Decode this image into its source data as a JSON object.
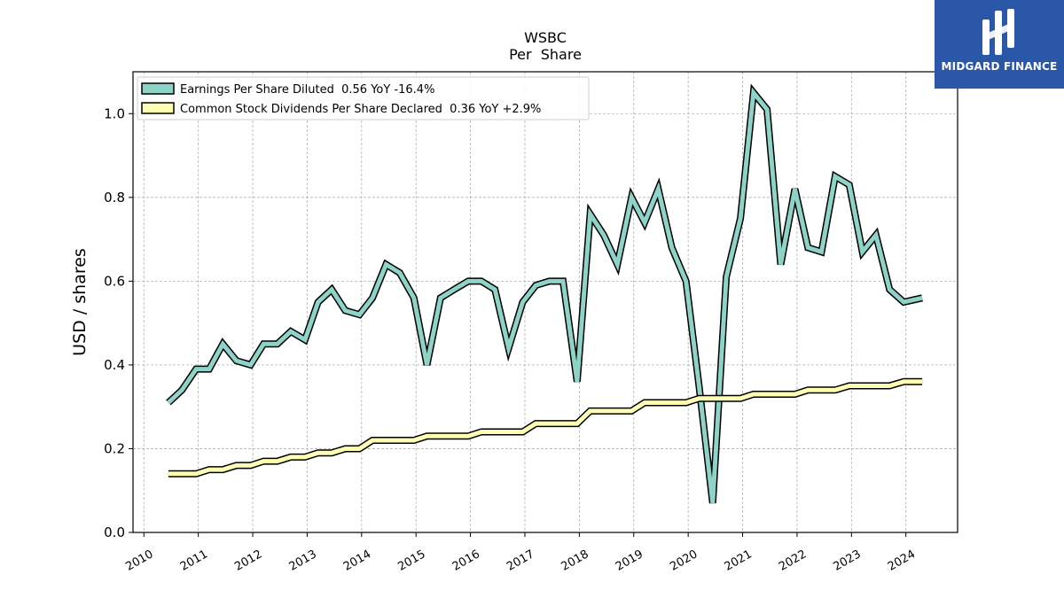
{
  "brand": {
    "name": "MIDGARD FINANCE"
  },
  "chart_data": {
    "type": "line",
    "title": "WSBC",
    "subtitle": "Per  Share",
    "ylabel": "USD / shares",
    "xlabel": "",
    "ylim": [
      0,
      1.1
    ],
    "xlim": [
      2009.8,
      2024.95
    ],
    "yticks": [
      0.0,
      0.2,
      0.4,
      0.6,
      0.8,
      1.0
    ],
    "ytick_labels": [
      "0.0",
      "0.2",
      "0.4",
      "0.6",
      "0.8",
      "1.0"
    ],
    "xticks": [
      2010,
      2011,
      2012,
      2013,
      2014,
      2015,
      2016,
      2017,
      2018,
      2019,
      2020,
      2021,
      2022,
      2023,
      2024
    ],
    "xtick_labels": [
      "2010",
      "2011",
      "2012",
      "2013",
      "2014",
      "2015",
      "2016",
      "2017",
      "2018",
      "2019",
      "2020",
      "2021",
      "2022",
      "2023",
      "2024"
    ],
    "grid": true,
    "legend_position": "top-left",
    "series": [
      {
        "name": "Earnings Per Share Diluted  0.56 YoY -16.4%",
        "color": "#8dd3c7",
        "x": [
          2010.45,
          2010.7,
          2010.96,
          2011.2,
          2011.45,
          2011.7,
          2011.96,
          2012.2,
          2012.45,
          2012.7,
          2012.96,
          2013.2,
          2013.45,
          2013.7,
          2013.96,
          2014.2,
          2014.45,
          2014.7,
          2014.96,
          2015.2,
          2015.45,
          2015.7,
          2015.96,
          2016.2,
          2016.45,
          2016.7,
          2016.96,
          2017.2,
          2017.45,
          2017.7,
          2017.96,
          2018.2,
          2018.45,
          2018.7,
          2018.96,
          2019.2,
          2019.45,
          2019.7,
          2019.96,
          2020.2,
          2020.45,
          2020.7,
          2020.96,
          2021.2,
          2021.45,
          2021.7,
          2021.96,
          2022.2,
          2022.45,
          2022.7,
          2022.96,
          2023.2,
          2023.45,
          2023.7,
          2023.96,
          2024.3
        ],
        "y": [
          0.31,
          0.34,
          0.39,
          0.39,
          0.45,
          0.41,
          0.4,
          0.45,
          0.45,
          0.48,
          0.46,
          0.55,
          0.58,
          0.53,
          0.52,
          0.56,
          0.64,
          0.62,
          0.56,
          0.4,
          0.56,
          0.58,
          0.6,
          0.6,
          0.58,
          0.44,
          0.55,
          0.59,
          0.6,
          0.6,
          0.36,
          0.76,
          0.71,
          0.64,
          0.8,
          0.74,
          0.82,
          0.68,
          0.6,
          0.35,
          0.07,
          0.61,
          0.75,
          1.05,
          1.01,
          0.64,
          0.82,
          0.68,
          0.67,
          0.85,
          0.83,
          0.67,
          0.71,
          0.58,
          0.55,
          0.56
        ]
      },
      {
        "name": "Common Stock Dividends Per Share Declared  0.36 YoY +2.9%",
        "color": "#ffffb3",
        "x": [
          2010.45,
          2010.7,
          2010.96,
          2011.2,
          2011.45,
          2011.7,
          2011.96,
          2012.2,
          2012.45,
          2012.7,
          2012.96,
          2013.2,
          2013.45,
          2013.7,
          2013.96,
          2014.2,
          2014.45,
          2014.7,
          2014.96,
          2015.2,
          2015.45,
          2015.7,
          2015.96,
          2016.2,
          2016.45,
          2016.7,
          2016.96,
          2017.2,
          2017.45,
          2017.7,
          2017.96,
          2018.2,
          2018.45,
          2018.7,
          2018.96,
          2019.2,
          2019.45,
          2019.7,
          2019.96,
          2020.2,
          2020.45,
          2020.7,
          2020.96,
          2021.2,
          2021.45,
          2021.7,
          2021.96,
          2022.2,
          2022.45,
          2022.7,
          2022.96,
          2023.2,
          2023.45,
          2023.7,
          2023.96,
          2024.3
        ],
        "y": [
          0.14,
          0.14,
          0.14,
          0.15,
          0.15,
          0.16,
          0.16,
          0.17,
          0.17,
          0.18,
          0.18,
          0.19,
          0.19,
          0.2,
          0.2,
          0.22,
          0.22,
          0.22,
          0.22,
          0.23,
          0.23,
          0.23,
          0.23,
          0.24,
          0.24,
          0.24,
          0.24,
          0.26,
          0.26,
          0.26,
          0.26,
          0.29,
          0.29,
          0.29,
          0.29,
          0.31,
          0.31,
          0.31,
          0.31,
          0.32,
          0.32,
          0.32,
          0.32,
          0.33,
          0.33,
          0.33,
          0.33,
          0.34,
          0.34,
          0.34,
          0.35,
          0.35,
          0.35,
          0.35,
          0.36,
          0.36
        ]
      }
    ]
  }
}
